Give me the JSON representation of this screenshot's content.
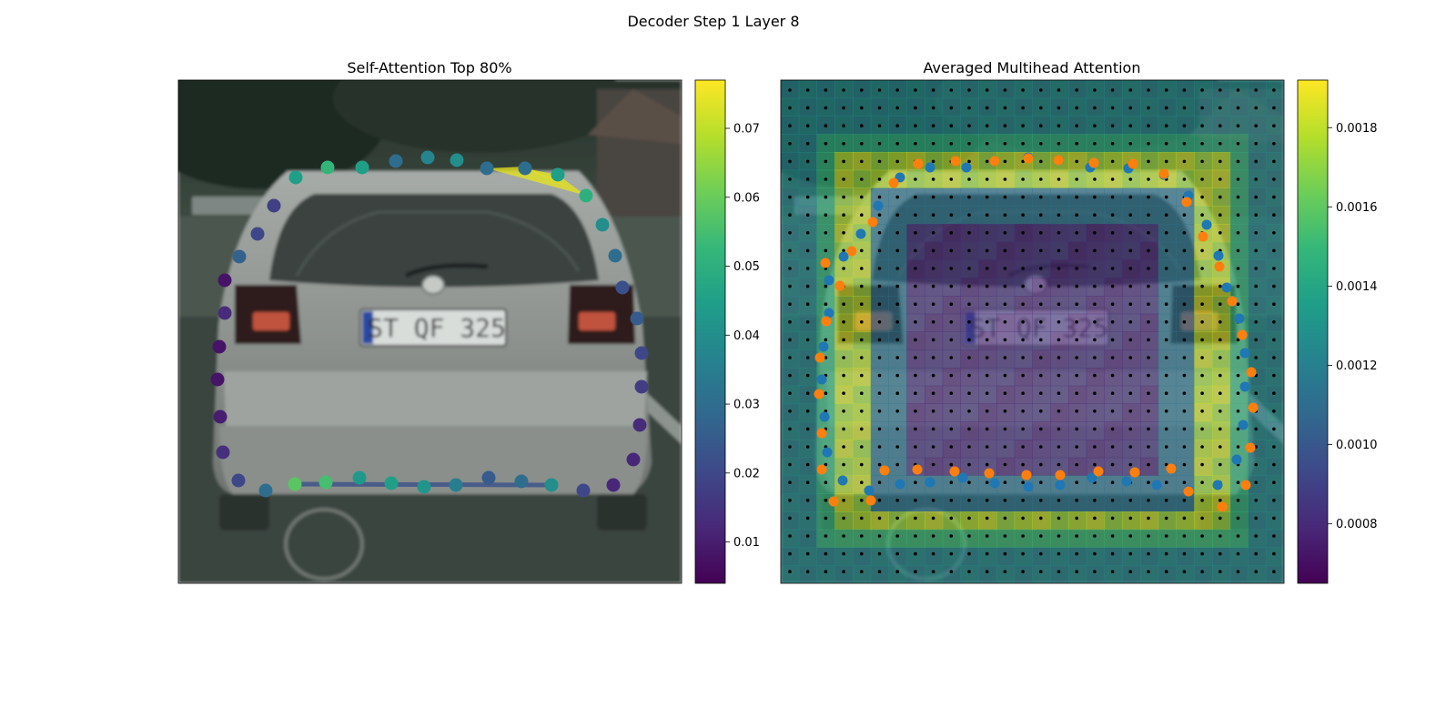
{
  "figure": {
    "suptitle": "Decoder Step 1 Layer 8"
  },
  "chart_data": [
    {
      "type": "scatter",
      "title": "Self-Attention Top 80%",
      "xlabel": "",
      "ylabel": "",
      "background": "photo of the rear of a silver hatchback car with license plate ST QF 325",
      "plate_text": "ST QF 325",
      "highlight_color": "#e7e419",
      "colorbar": {
        "colormap": "viridis",
        "range": [
          0.004,
          0.077
        ],
        "ticks": [
          "0.01",
          "0.02",
          "0.03",
          "0.04",
          "0.05",
          "0.06",
          "0.07"
        ]
      },
      "points": [
        {
          "x": 325,
          "y": 195,
          "v": 0.045
        },
        {
          "x": 360,
          "y": 184,
          "v": 0.052
        },
        {
          "x": 398,
          "y": 184,
          "v": 0.045
        },
        {
          "x": 435,
          "y": 177,
          "v": 0.03
        },
        {
          "x": 470,
          "y": 173,
          "v": 0.037
        },
        {
          "x": 502,
          "y": 176,
          "v": 0.04
        },
        {
          "x": 535,
          "y": 185,
          "v": 0.03
        },
        {
          "x": 577,
          "y": 185,
          "v": 0.03
        },
        {
          "x": 613,
          "y": 192,
          "v": 0.045
        },
        {
          "x": 644,
          "y": 215,
          "v": 0.05
        },
        {
          "x": 662,
          "y": 247,
          "v": 0.04
        },
        {
          "x": 676,
          "y": 281,
          "v": 0.03
        },
        {
          "x": 684,
          "y": 316,
          "v": 0.022
        },
        {
          "x": 700,
          "y": 350,
          "v": 0.025
        },
        {
          "x": 705,
          "y": 388,
          "v": 0.02
        },
        {
          "x": 705,
          "y": 425,
          "v": 0.017
        },
        {
          "x": 703,
          "y": 467,
          "v": 0.013
        },
        {
          "x": 696,
          "y": 505,
          "v": 0.012
        },
        {
          "x": 674,
          "y": 533,
          "v": 0.012
        },
        {
          "x": 641,
          "y": 539,
          "v": 0.02
        },
        {
          "x": 606,
          "y": 533,
          "v": 0.04
        },
        {
          "x": 573,
          "y": 529,
          "v": 0.03
        },
        {
          "x": 537,
          "y": 525,
          "v": 0.025
        },
        {
          "x": 501,
          "y": 533,
          "v": 0.035
        },
        {
          "x": 466,
          "y": 535,
          "v": 0.042
        },
        {
          "x": 430,
          "y": 531,
          "v": 0.045
        },
        {
          "x": 395,
          "y": 525,
          "v": 0.043
        },
        {
          "x": 358,
          "y": 530,
          "v": 0.055
        },
        {
          "x": 324,
          "y": 532,
          "v": 0.058
        },
        {
          "x": 292,
          "y": 539,
          "v": 0.03
        },
        {
          "x": 262,
          "y": 528,
          "v": 0.02
        },
        {
          "x": 245,
          "y": 497,
          "v": 0.014
        },
        {
          "x": 242,
          "y": 458,
          "v": 0.01
        },
        {
          "x": 239,
          "y": 417,
          "v": 0.008
        },
        {
          "x": 241,
          "y": 381,
          "v": 0.008
        },
        {
          "x": 247,
          "y": 344,
          "v": 0.013
        },
        {
          "x": 247,
          "y": 308,
          "v": 0.008
        },
        {
          "x": 263,
          "y": 282,
          "v": 0.027
        },
        {
          "x": 283,
          "y": 257,
          "v": 0.02
        },
        {
          "x": 301,
          "y": 226,
          "v": 0.018
        }
      ]
    },
    {
      "type": "heatmap",
      "title": "Averaged Multihead Attention",
      "xlabel": "",
      "ylabel": "",
      "colorbar": {
        "colormap": "viridis",
        "range": [
          0.00065,
          0.00192
        ],
        "ticks": [
          "0.0008",
          "0.0010",
          "0.0012",
          "0.0014",
          "0.0016",
          "0.0018"
        ]
      },
      "grid_cols": 28,
      "grid_rows": 28,
      "blue_points": [
        [
          965,
          226
        ],
        [
          989,
          195
        ],
        [
          1022,
          184
        ],
        [
          1062,
          184
        ],
        [
          1093,
          177
        ],
        [
          1130,
          173
        ],
        [
          1163,
          176
        ],
        [
          1198,
          184
        ],
        [
          1240,
          185
        ],
        [
          1279,
          192
        ],
        [
          1306,
          215
        ],
        [
          1326,
          247
        ],
        [
          1339,
          281
        ],
        [
          1348,
          316
        ],
        [
          1362,
          350
        ],
        [
          1368,
          388
        ],
        [
          1368,
          425
        ],
        [
          1366,
          467
        ],
        [
          1359,
          505
        ],
        [
          1338,
          533
        ],
        [
          1306,
          539
        ],
        [
          1271,
          533
        ],
        [
          1238,
          529
        ],
        [
          1200,
          525
        ],
        [
          1165,
          533
        ],
        [
          1130,
          535
        ],
        [
          1093,
          531
        ],
        [
          1058,
          525
        ],
        [
          1022,
          530
        ],
        [
          989,
          532
        ],
        [
          955,
          539
        ],
        [
          926,
          528
        ],
        [
          909,
          497
        ],
        [
          906,
          458
        ],
        [
          903,
          417
        ],
        [
          905,
          381
        ],
        [
          911,
          344
        ],
        [
          911,
          308
        ],
        [
          927,
          282
        ],
        [
          946,
          257
        ]
      ],
      "orange_points": [
        [
          982,
          201
        ],
        [
          1009,
          180
        ],
        [
          1050,
          177
        ],
        [
          1093,
          177
        ],
        [
          1130,
          174
        ],
        [
          1163,
          176
        ],
        [
          1202,
          179
        ],
        [
          1245,
          180
        ],
        [
          1279,
          191
        ],
        [
          1304,
          222
        ],
        [
          1322,
          260
        ],
        [
          1340,
          293
        ],
        [
          1354,
          331
        ],
        [
          1365,
          368
        ],
        [
          1375,
          409
        ],
        [
          1377,
          448
        ],
        [
          1374,
          492
        ],
        [
          1369,
          533
        ],
        [
          1343,
          557
        ],
        [
          1306,
          540
        ],
        [
          1287,
          515
        ],
        [
          1247,
          519
        ],
        [
          1207,
          518
        ],
        [
          1165,
          522
        ],
        [
          1128,
          522
        ],
        [
          1087,
          520
        ],
        [
          1049,
          518
        ],
        [
          1008,
          516
        ],
        [
          972,
          517
        ],
        [
          957,
          550
        ],
        [
          916,
          551
        ],
        [
          903,
          516
        ],
        [
          903,
          476
        ],
        [
          900,
          433
        ],
        [
          901,
          393
        ],
        [
          908,
          353
        ],
        [
          923,
          314
        ],
        [
          907,
          289
        ],
        [
          936,
          276
        ],
        [
          959,
          244
        ]
      ]
    }
  ]
}
